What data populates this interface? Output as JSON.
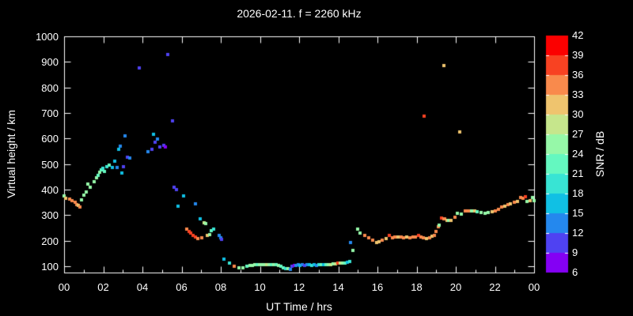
{
  "title": "2026-02-11. f = 2260 kHz",
  "chart_data": {
    "type": "scatter",
    "title": "2026-02-11. f = 2260 kHz",
    "xlabel": "UT Time / hrs",
    "ylabel": "Virtual height / km",
    "colorbar_label": "SNR / dB",
    "background": "#000000",
    "frame_color": "#ffffff",
    "xlim": [
      0,
      24
    ],
    "ylim": [
      75,
      1000
    ],
    "x_tick_hours": [
      0,
      2,
      4,
      6,
      8,
      10,
      12,
      14,
      16,
      18,
      20,
      22,
      24
    ],
    "x_tick_labels": [
      "00",
      "02",
      "04",
      "06",
      "08",
      "10",
      "12",
      "14",
      "16",
      "18",
      "20",
      "22",
      "00"
    ],
    "y_ticks": [
      100,
      200,
      300,
      400,
      500,
      600,
      700,
      800,
      900,
      1000
    ],
    "grid": false,
    "legend_position": "right-colorbar",
    "colorbar": {
      "ticks": [
        6,
        9,
        12,
        15,
        18,
        21,
        24,
        27,
        30,
        33,
        36,
        39,
        42
      ],
      "palette": [
        "#8400F4",
        "#4F42F2",
        "#2488EE",
        "#10C0E4",
        "#38E4D4",
        "#64F8C0",
        "#96F8A8",
        "#C6E68C",
        "#EFC46E",
        "#F98A4C",
        "#F84222",
        "#FB0000"
      ]
    },
    "point_format": [
      "ut_hour",
      "virtual_height_km",
      "snr_db"
    ],
    "points": [
      [
        0.02,
        375,
        25
      ],
      [
        0.08,
        366,
        31
      ],
      [
        0.3,
        362,
        34
      ],
      [
        0.42,
        357,
        34
      ],
      [
        0.55,
        350,
        34
      ],
      [
        0.64,
        341,
        34
      ],
      [
        0.72,
        337,
        31
      ],
      [
        0.8,
        333,
        34
      ],
      [
        0.9,
        360,
        25
      ],
      [
        1.0,
        378,
        25
      ],
      [
        1.12,
        391,
        25
      ],
      [
        1.22,
        422,
        25
      ],
      [
        1.32,
        409,
        25
      ],
      [
        1.55,
        431,
        25
      ],
      [
        1.65,
        446,
        25
      ],
      [
        1.72,
        455,
        22
      ],
      [
        1.8,
        468,
        25
      ],
      [
        1.88,
        477,
        22
      ],
      [
        1.98,
        483,
        19
      ],
      [
        2.08,
        470,
        22
      ],
      [
        2.18,
        490,
        19
      ],
      [
        2.3,
        497,
        22
      ],
      [
        2.45,
        487,
        16
      ],
      [
        2.6,
        511,
        16
      ],
      [
        2.7,
        487,
        13
      ],
      [
        2.78,
        558,
        16
      ],
      [
        2.88,
        570,
        13
      ],
      [
        2.95,
        465,
        16
      ],
      [
        3.05,
        490,
        10
      ],
      [
        3.12,
        610,
        13
      ],
      [
        3.25,
        527,
        10
      ],
      [
        3.35,
        524,
        13
      ],
      [
        3.85,
        876,
        10
      ],
      [
        4.3,
        549,
        13
      ],
      [
        4.48,
        558,
        10
      ],
      [
        4.55,
        617,
        16
      ],
      [
        4.65,
        586,
        10
      ],
      [
        4.78,
        598,
        13
      ],
      [
        4.9,
        567,
        10
      ],
      [
        5.08,
        572,
        10
      ],
      [
        5.16,
        567,
        8
      ],
      [
        5.28,
        929,
        10
      ],
      [
        5.52,
        669,
        9
      ],
      [
        5.6,
        409,
        10
      ],
      [
        5.72,
        400,
        10
      ],
      [
        5.82,
        335,
        16
      ],
      [
        6.12,
        375,
        16
      ],
      [
        6.72,
        344,
        13
      ],
      [
        6.28,
        245,
        34
      ],
      [
        6.38,
        236,
        37
      ],
      [
        6.48,
        230,
        37
      ],
      [
        6.58,
        220,
        37
      ],
      [
        6.7,
        214,
        37
      ],
      [
        6.84,
        208,
        34
      ],
      [
        6.95,
        286,
        16
      ],
      [
        7.05,
        212,
        34
      ],
      [
        7.15,
        270,
        28
      ],
      [
        7.25,
        267,
        25
      ],
      [
        7.32,
        220,
        31
      ],
      [
        7.42,
        223,
        25
      ],
      [
        7.52,
        240,
        22
      ],
      [
        7.65,
        245,
        19
      ],
      [
        7.9,
        220,
        13
      ],
      [
        7.98,
        212,
        13
      ],
      [
        8.06,
        205,
        10
      ],
      [
        8.18,
        128,
        16
      ],
      [
        8.45,
        112,
        19
      ],
      [
        8.7,
        100,
        34
      ],
      [
        8.92,
        94,
        25
      ],
      [
        9.15,
        94,
        25
      ],
      [
        9.35,
        100,
        22
      ],
      [
        9.5,
        104,
        25
      ],
      [
        9.62,
        104,
        25
      ],
      [
        9.74,
        105,
        25
      ],
      [
        9.86,
        105,
        22
      ],
      [
        9.98,
        105,
        25
      ],
      [
        10.1,
        105,
        25
      ],
      [
        10.22,
        106,
        25
      ],
      [
        10.34,
        106,
        28
      ],
      [
        10.46,
        106,
        25
      ],
      [
        10.58,
        107,
        22
      ],
      [
        10.7,
        106,
        25
      ],
      [
        10.82,
        105,
        22
      ],
      [
        10.94,
        104,
        25
      ],
      [
        11.06,
        100,
        22
      ],
      [
        11.18,
        95,
        22
      ],
      [
        11.3,
        92,
        19
      ],
      [
        11.42,
        91,
        25
      ],
      [
        11.55,
        88,
        13
      ],
      [
        11.65,
        100,
        10
      ],
      [
        11.74,
        103,
        8
      ],
      [
        11.82,
        104,
        13
      ],
      [
        11.94,
        105,
        13
      ],
      [
        12.06,
        104,
        16
      ],
      [
        12.18,
        105,
        13
      ],
      [
        12.3,
        104,
        10
      ],
      [
        12.42,
        105,
        13
      ],
      [
        12.54,
        105,
        16
      ],
      [
        12.66,
        104,
        19
      ],
      [
        12.78,
        105,
        16
      ],
      [
        12.9,
        104,
        13
      ],
      [
        13.02,
        105,
        19
      ],
      [
        13.14,
        106,
        22
      ],
      [
        13.26,
        105,
        16
      ],
      [
        13.38,
        106,
        22
      ],
      [
        13.5,
        107,
        25
      ],
      [
        13.62,
        107,
        28
      ],
      [
        13.74,
        108,
        25
      ],
      [
        13.86,
        110,
        28
      ],
      [
        13.98,
        111,
        37
      ],
      [
        14.1,
        112,
        28
      ],
      [
        14.22,
        112,
        25
      ],
      [
        14.34,
        113,
        22
      ],
      [
        14.46,
        115,
        16
      ],
      [
        14.58,
        118,
        19
      ],
      [
        14.64,
        193,
        13
      ],
      [
        14.74,
        162,
        24
      ],
      [
        15.0,
        245,
        24
      ],
      [
        15.12,
        230,
        24
      ],
      [
        15.35,
        220,
        34
      ],
      [
        15.55,
        210,
        34
      ],
      [
        15.75,
        201,
        34
      ],
      [
        15.95,
        194,
        31
      ],
      [
        16.1,
        196,
        31
      ],
      [
        16.25,
        203,
        34
      ],
      [
        16.45,
        208,
        31
      ],
      [
        16.6,
        220,
        37
      ],
      [
        16.75,
        212,
        34
      ],
      [
        16.9,
        214,
        34
      ],
      [
        17.05,
        215,
        31
      ],
      [
        17.2,
        213,
        34
      ],
      [
        17.35,
        212,
        34
      ],
      [
        17.5,
        214,
        31
      ],
      [
        17.65,
        212,
        34
      ],
      [
        17.8,
        213,
        34
      ],
      [
        17.95,
        215,
        34
      ],
      [
        18.1,
        220,
        37
      ],
      [
        18.22,
        214,
        34
      ],
      [
        18.35,
        210,
        34
      ],
      [
        18.5,
        208,
        31
      ],
      [
        18.65,
        212,
        34
      ],
      [
        18.8,
        218,
        31
      ],
      [
        18.9,
        222,
        34
      ],
      [
        19.0,
        236,
        34
      ],
      [
        19.1,
        255,
        34
      ],
      [
        19.16,
        261,
        25
      ],
      [
        19.28,
        289,
        37
      ],
      [
        19.38,
        286,
        34
      ],
      [
        19.45,
        286,
        34
      ],
      [
        19.55,
        280,
        31
      ],
      [
        19.62,
        278,
        25
      ],
      [
        19.75,
        278,
        31
      ],
      [
        19.95,
        292,
        34
      ],
      [
        20.1,
        307,
        25
      ],
      [
        20.3,
        305,
        25
      ],
      [
        20.5,
        317,
        34
      ],
      [
        20.65,
        315,
        34
      ],
      [
        20.8,
        315,
        25
      ],
      [
        20.95,
        317,
        31
      ],
      [
        21.1,
        313,
        22
      ],
      [
        21.3,
        309,
        25
      ],
      [
        21.5,
        307,
        25
      ],
      [
        21.65,
        309,
        25
      ],
      [
        21.85,
        313,
        31
      ],
      [
        22.0,
        317,
        34
      ],
      [
        22.2,
        323,
        34
      ],
      [
        22.35,
        332,
        34
      ],
      [
        22.5,
        334,
        31
      ],
      [
        22.65,
        341,
        34
      ],
      [
        22.8,
        344,
        31
      ],
      [
        23.0,
        350,
        34
      ],
      [
        23.15,
        354,
        31
      ],
      [
        23.3,
        369,
        34
      ],
      [
        23.45,
        366,
        34
      ],
      [
        23.55,
        372,
        37
      ],
      [
        23.65,
        354,
        25
      ],
      [
        23.8,
        357,
        31
      ],
      [
        23.9,
        369,
        25
      ],
      [
        23.98,
        357,
        25
      ],
      [
        18.4,
        688,
        37
      ],
      [
        19.4,
        885,
        31
      ],
      [
        20.2,
        626,
        31
      ]
    ]
  }
}
